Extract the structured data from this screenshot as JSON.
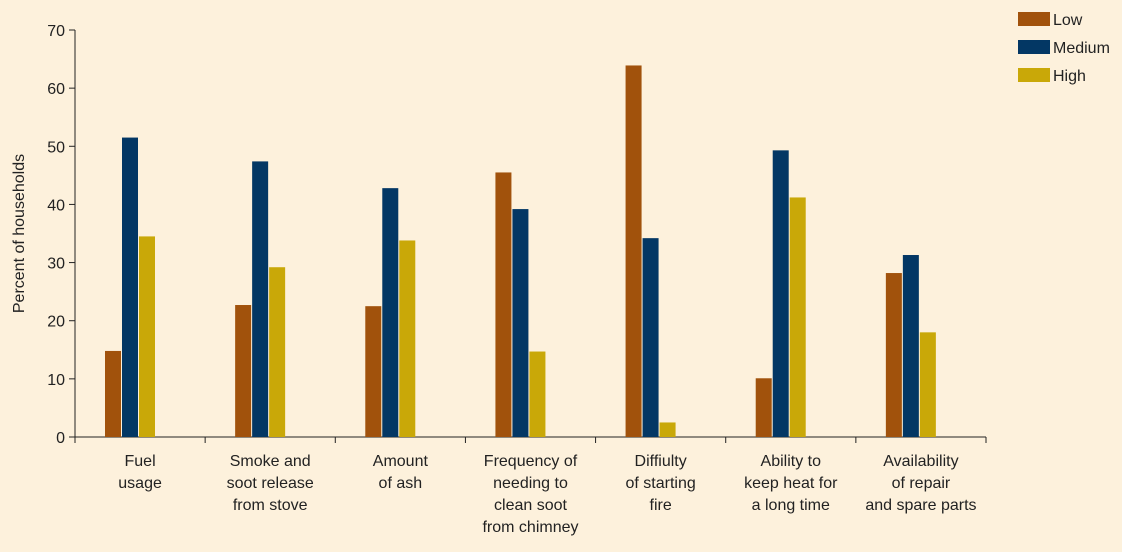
{
  "chart_data": {
    "type": "bar",
    "ylabel": "Percent of households",
    "ylim": [
      0,
      70
    ],
    "yticks": [
      0,
      10,
      20,
      30,
      40,
      50,
      60,
      70
    ],
    "grid": false,
    "legend_position": "top-right",
    "categories": [
      [
        "Fuel",
        "usage"
      ],
      [
        "Smoke and",
        "soot release",
        "from stove"
      ],
      [
        "Amount",
        "of ash"
      ],
      [
        "Frequency of",
        "needing to",
        "clean soot",
        "from chimney"
      ],
      [
        "Diffiulty",
        "of starting",
        "fire"
      ],
      [
        "Ability to",
        "keep heat for",
        "a long time"
      ],
      [
        "Availability",
        "of repair",
        "and spare parts"
      ]
    ],
    "series": [
      {
        "name": "Low",
        "color": "#a1520c",
        "values": [
          14.8,
          22.7,
          22.5,
          45.5,
          63.9,
          10.1,
          28.2
        ]
      },
      {
        "name": "Medium",
        "color": "#033764",
        "values": [
          51.5,
          47.4,
          42.8,
          39.2,
          34.2,
          49.3,
          31.3
        ]
      },
      {
        "name": "High",
        "color": "#c9a808",
        "values": [
          34.5,
          29.2,
          33.8,
          14.7,
          2.5,
          41.2,
          18.0
        ]
      }
    ]
  }
}
